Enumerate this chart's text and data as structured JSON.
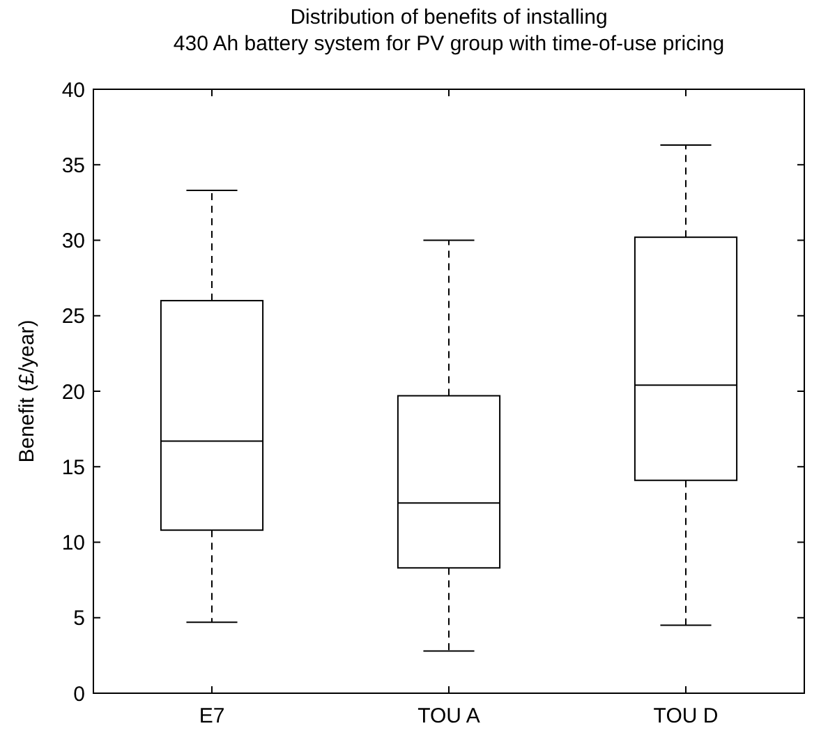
{
  "chart_data": {
    "type": "box",
    "title": "Distribution of benefits of installing\n430 Ah battery system for PV group with time-of-use pricing",
    "ylabel": "Benefit (£/year)",
    "categories": [
      "E7",
      "TOU A",
      "TOU D"
    ],
    "boxes": [
      {
        "low": 4.7,
        "q1": 10.8,
        "median": 16.7,
        "q3": 26,
        "high": 33.3
      },
      {
        "low": 2.8,
        "q1": 8.3,
        "median": 12.6,
        "q3": 19.7,
        "high": 30
      },
      {
        "low": 4.5,
        "q1": 14.1,
        "median": 20.4,
        "q3": 30.2,
        "high": 36.3
      }
    ],
    "color": "#000000",
    "ylim": [
      0,
      40
    ],
    "yticks": [
      0,
      5,
      10,
      15,
      20,
      25,
      30,
      35,
      40
    ],
    "grid": false
  }
}
